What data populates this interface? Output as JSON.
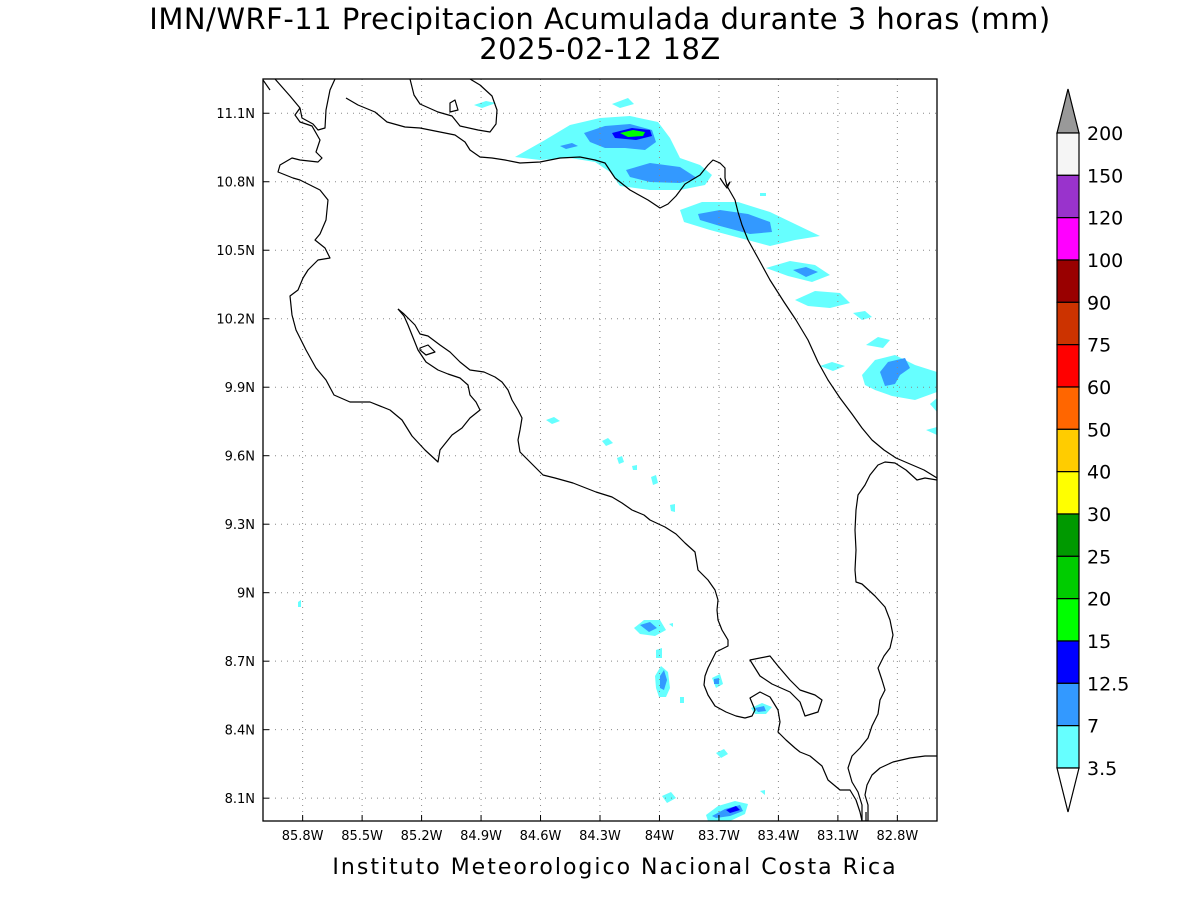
{
  "title": {
    "line1": "IMN/WRF-11 Precipitacion Acumulada durante 3 horas (mm)",
    "line2": "2025-02-12 18Z"
  },
  "footer": "Instituto Meteorologico Nacional Costa Rica",
  "map": {
    "region": "Costa Rica",
    "lon_range": [
      -86.0,
      -82.6
    ],
    "lat_range": [
      8.0,
      11.25
    ],
    "lon_ticks": [
      "85.8W",
      "85.5W",
      "85.2W",
      "84.9W",
      "84.6W",
      "84.3W",
      "84W",
      "83.7W",
      "83.4W",
      "83.1W",
      "82.8W"
    ],
    "lat_ticks": [
      "11.1N",
      "10.8N",
      "10.5N",
      "10.2N",
      "9.9N",
      "9.6N",
      "9.3N",
      "9N",
      "8.7N",
      "8.4N",
      "8.1N"
    ],
    "grid": "dotted"
  },
  "legend": {
    "labels": [
      "200",
      "150",
      "120",
      "100",
      "90",
      "75",
      "60",
      "50",
      "40",
      "30",
      "25",
      "20",
      "15",
      "12.5",
      "7",
      "3.5"
    ],
    "colors": [
      "#f5f5f5",
      "#9933cc",
      "#ff00ff",
      "#990000",
      "#cc3300",
      "#ff0000",
      "#ff6600",
      "#ffcc00",
      "#ffff00",
      "#009900",
      "#00cc00",
      "#00ff00",
      "#0000ff",
      "#3399ff",
      "#66ffff"
    ],
    "over_color": "#999999",
    "under_color": "#ffffff"
  },
  "colors": {
    "light_cyan": "#66ffff",
    "light_blue": "#3399ff",
    "blue": "#0000ff",
    "green": "#00ff00"
  }
}
